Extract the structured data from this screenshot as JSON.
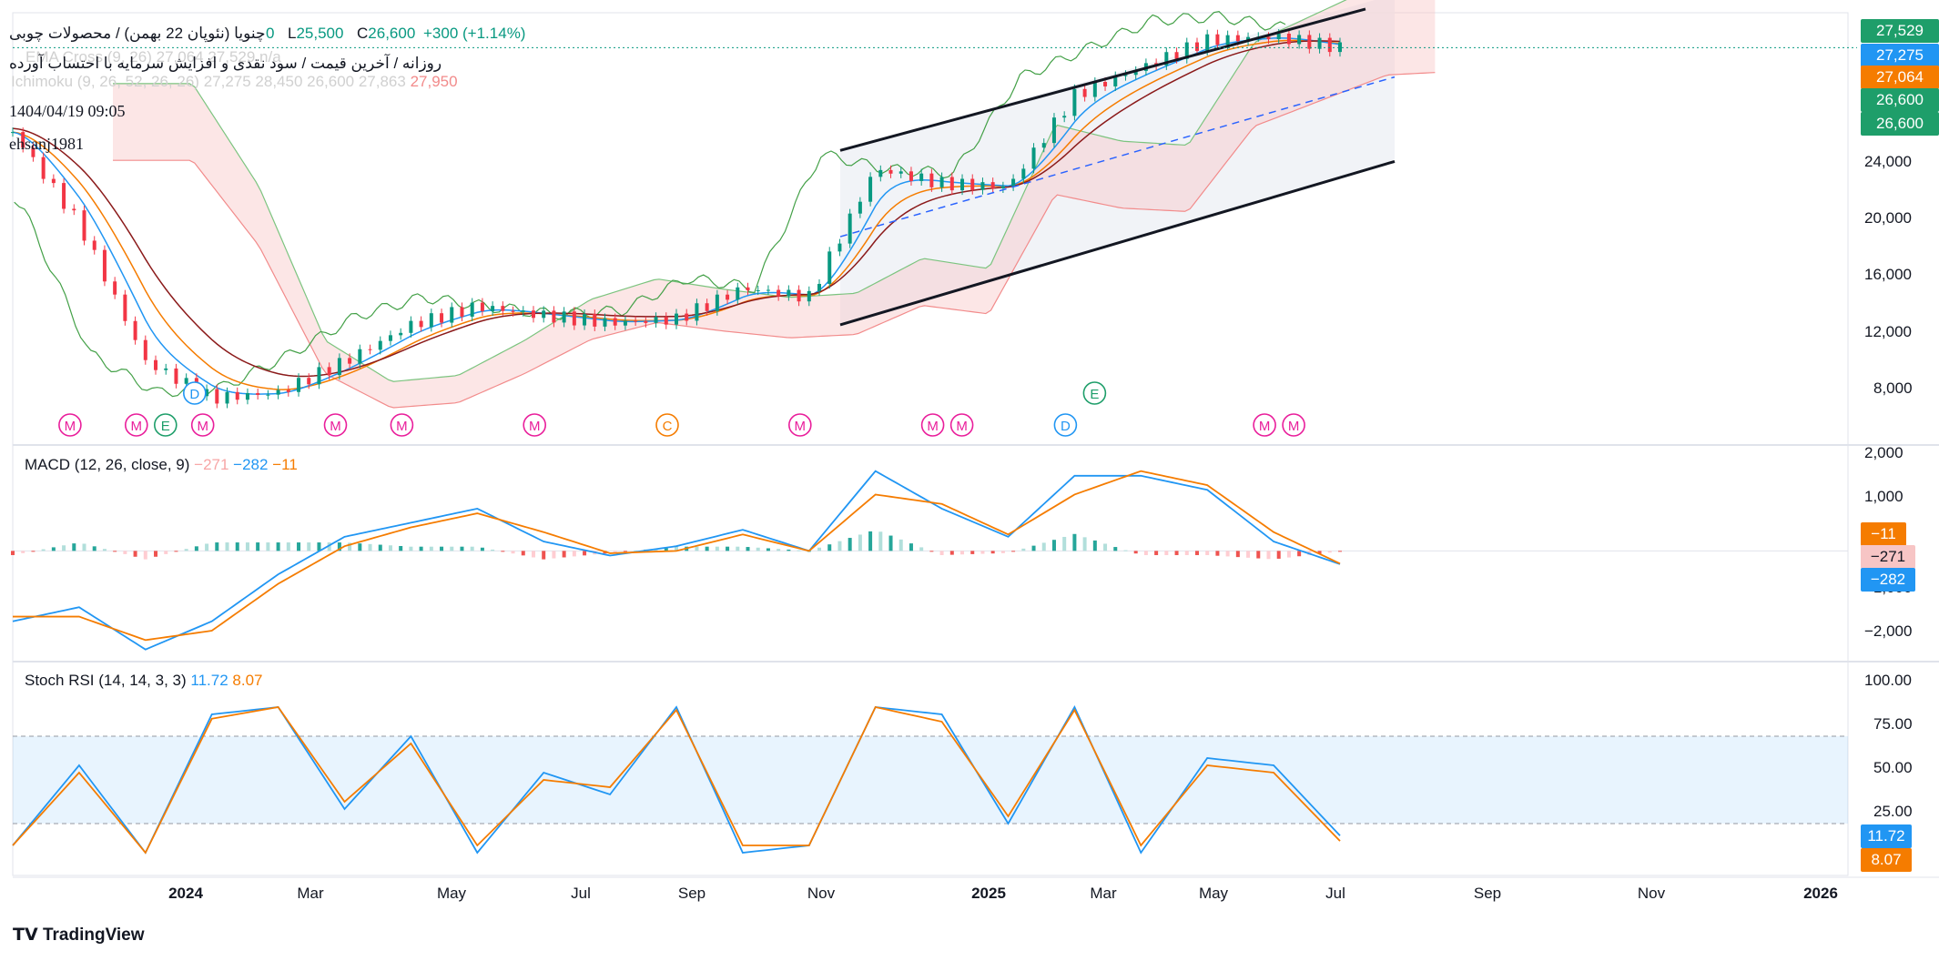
{
  "header": {
    "title": "چنویا (نئوپان 22 بهمن) / محصولات چوبی",
    "ohlc_partial": "0",
    "low_label": "L",
    "low_value": "25,500",
    "close_label": "C",
    "close_value": "26,600",
    "change": "+300 (+1.14%)",
    "subtitle": "روزانه / آخرین قیمت / سود نقدی و افزایش سرمایه با احتساب آورده",
    "ema_label": "EMA Cross (9, 26)",
    "ema_values": "27,064  27,529  n/a",
    "ichimoku_label": "Ichimoku (9, 26, 52, 26, 26)",
    "ichimoku_values": "27,275  28,450  26,600  27,863",
    "ichimoku_last": "27,950",
    "timestamp": "1404/04/19 09:05",
    "author": "ehsanj1981"
  },
  "price_axis": {
    "ticks": [
      "24,000",
      "20,000",
      "16,000",
      "12,000",
      "8,000"
    ],
    "badges": [
      {
        "text": "27,529",
        "color": "#1e9e6a"
      },
      {
        "text": "27,275",
        "color": "#2196f3"
      },
      {
        "text": "27,064",
        "color": "#f57c00"
      },
      {
        "text": "26,600",
        "color": "#1e9e6a"
      },
      {
        "text": "26,600",
        "color": "#1e9e6a"
      }
    ]
  },
  "macd": {
    "label": "MACD (12, 26, close, 9)",
    "v1": "−271",
    "v2": "−282",
    "v3": "−11",
    "ticks": [
      "2,000",
      "1,000",
      "−1,000",
      "−2,000"
    ],
    "badges": [
      {
        "text": "−11",
        "color": "#f57c00"
      },
      {
        "text": "−271",
        "color": "#f7c5c5",
        "text_color": "#131722"
      },
      {
        "text": "−282",
        "color": "#2196f3"
      }
    ]
  },
  "stoch": {
    "label": "Stoch RSI (14, 14, 3, 3)",
    "k": "11.72",
    "d": "8.07",
    "ticks": [
      "100.00",
      "75.00",
      "50.00",
      "25.00"
    ],
    "badges": [
      {
        "text": "11.72",
        "color": "#2196f3"
      },
      {
        "text": "8.07",
        "color": "#f57c00"
      }
    ]
  },
  "time_axis": [
    {
      "text": "2024",
      "bold": true
    },
    {
      "text": "Mar",
      "bold": false
    },
    {
      "text": "May",
      "bold": false
    },
    {
      "text": "Jul",
      "bold": false
    },
    {
      "text": "Sep",
      "bold": false
    },
    {
      "text": "Nov",
      "bold": false
    },
    {
      "text": "2025",
      "bold": true
    },
    {
      "text": "Mar",
      "bold": false
    },
    {
      "text": "May",
      "bold": false
    },
    {
      "text": "Jul",
      "bold": false
    },
    {
      "text": "Sep",
      "bold": false
    },
    {
      "text": "Nov",
      "bold": false
    },
    {
      "text": "2026",
      "bold": true
    }
  ],
  "brand": "TradingView",
  "colors": {
    "up": "#089981",
    "down": "#f23645",
    "ema_fast": "#2196f3",
    "ema_slow": "#f57c00",
    "cloud_up": "#c8e6c9",
    "cloud_down": "#f8c7c7",
    "channel": "#131722",
    "stoch_band": "#2196f3"
  },
  "chart_data": [
    {
      "type": "candlestick",
      "title": "چنویا (نئوپان 22 بهمن) / محصولات چوبی",
      "x": [
        "2023-11",
        "2023-12",
        "2024-01",
        "2024-02",
        "2024-03",
        "2024-04",
        "2024-05",
        "2024-06",
        "2024-07",
        "2024-08",
        "2024-09",
        "2024-10",
        "2024-11",
        "2024-12",
        "2025-01",
        "2025-02",
        "2025-03",
        "2025-04",
        "2025-05",
        "2025-06",
        "2025-07"
      ],
      "close": [
        22000,
        17000,
        9500,
        7500,
        7800,
        9500,
        11500,
        12500,
        12000,
        11600,
        11800,
        13500,
        13000,
        20000,
        19200,
        19000,
        24000,
        25500,
        27000,
        27200,
        26600
      ],
      "ylim": [
        5000,
        28500
      ],
      "events": [
        {
          "date": "2023-12",
          "marker": "M"
        },
        {
          "date": "2024-01",
          "marker": "M"
        },
        {
          "date": "2024-01",
          "marker": "E"
        },
        {
          "date": "2024-01",
          "marker": "D"
        },
        {
          "date": "2024-02",
          "marker": "M"
        },
        {
          "date": "2024-04",
          "marker": "M"
        },
        {
          "date": "2024-05",
          "marker": "M"
        },
        {
          "date": "2024-07",
          "marker": "M"
        },
        {
          "date": "2024-09",
          "marker": "C"
        },
        {
          "date": "2024-11",
          "marker": "M"
        },
        {
          "date": "2025-01",
          "marker": "M"
        },
        {
          "date": "2025-01",
          "marker": "M"
        },
        {
          "date": "2025-03",
          "marker": "D"
        },
        {
          "date": "2025-03",
          "marker": "E"
        },
        {
          "date": "2025-06",
          "marker": "M"
        },
        {
          "date": "2025-06",
          "marker": "M"
        }
      ]
    },
    {
      "type": "line",
      "title": "MACD (12, 26, close, 9)",
      "x": [
        "2023-11",
        "2023-12",
        "2024-01",
        "2024-02",
        "2024-03",
        "2024-04",
        "2024-05",
        "2024-06",
        "2024-07",
        "2024-08",
        "2024-09",
        "2024-10",
        "2024-11",
        "2024-12",
        "2025-01",
        "2025-02",
        "2025-03",
        "2025-04",
        "2025-05",
        "2025-06",
        "2025-07"
      ],
      "series": [
        {
          "values": [
            -1500,
            -1200,
            -2100,
            -1500,
            -500,
            300,
            600,
            900,
            200,
            -100,
            100,
            450,
            0,
            1700,
            900,
            300,
            1600,
            1600,
            1300,
            200,
            -282
          ]
        },
        {
          "values": [
            -1400,
            -1400,
            -1900,
            -1700,
            -700,
            100,
            500,
            800,
            400,
            -50,
            0,
            350,
            0,
            1200,
            1000,
            350,
            1200,
            1700,
            1400,
            400,
            -271
          ]
        }
      ],
      "ylim": [
        -2300,
        2100
      ]
    },
    {
      "type": "line",
      "title": "Stoch RSI (14, 14, 3, 3)",
      "x": [
        "2023-11",
        "2023-12",
        "2024-01",
        "2024-02",
        "2024-03",
        "2024-04",
        "2024-05",
        "2024-06",
        "2024-07",
        "2024-08",
        "2024-09",
        "2024-10",
        "2024-11",
        "2024-12",
        "2025-01",
        "2025-02",
        "2025-03",
        "2025-04",
        "2025-05",
        "2025-06",
        "2025-07"
      ],
      "series": [
        {
          "values": [
            5,
            60,
            0,
            95,
            100,
            30,
            80,
            0,
            55,
            40,
            100,
            0,
            5,
            100,
            95,
            20,
            100,
            0,
            65,
            60,
            11.72
          ]
        },
        {
          "values": [
            5,
            55,
            0,
            92,
            100,
            35,
            75,
            5,
            50,
            45,
            98,
            5,
            5,
            100,
            90,
            25,
            98,
            5,
            60,
            55,
            8.07
          ]
        }
      ],
      "ylim": [
        0,
        100
      ],
      "bands": [
        20,
        80
      ]
    }
  ]
}
